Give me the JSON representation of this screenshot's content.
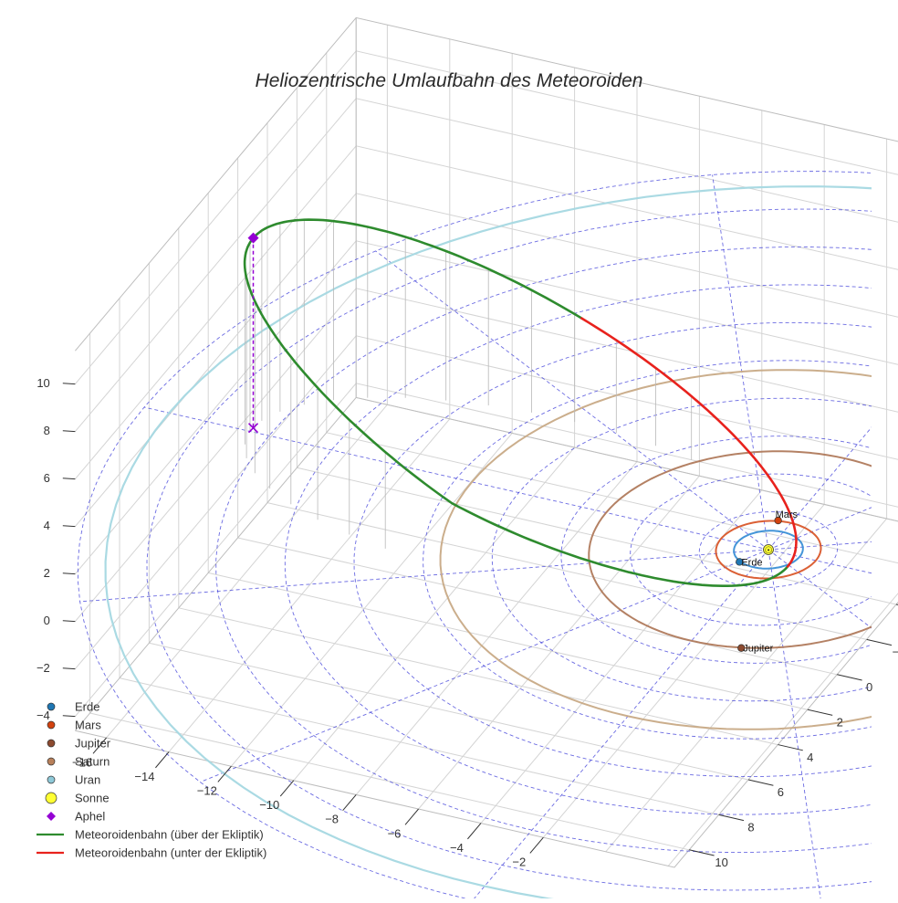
{
  "chart_data": {
    "type": "scatter3d",
    "title": "Heliozentrische Umlaufbahn des Meteoroiden",
    "axes": {
      "x": {
        "ticks": [
          -16,
          -14,
          -12,
          -10,
          -8,
          -6,
          -4,
          -2
        ],
        "labels": [
          "−16",
          "−14",
          "−12",
          "−10",
          "−8",
          "−6",
          "−4",
          "−2"
        ]
      },
      "y": {
        "ticks": [
          -4,
          -2,
          0,
          2,
          4,
          6,
          8,
          10
        ],
        "labels": [
          "−4",
          "−2",
          "0",
          "2",
          "4",
          "6",
          "8",
          "10"
        ]
      },
      "z": {
        "ticks": [
          -4,
          -2,
          0,
          2,
          4,
          6,
          8,
          10
        ],
        "labels": [
          "−4",
          "−2",
          "0",
          "2",
          "4",
          "6",
          "8",
          "10"
        ]
      }
    },
    "planets": [
      {
        "name": "Erde",
        "orbit_radius_au": 1.0,
        "color": "#1f77b4",
        "orbit_color": "#3a8fd6",
        "position": [
          -0.5,
          0.9,
          0
        ]
      },
      {
        "name": "Mars",
        "orbit_radius_au": 1.52,
        "color": "#d2420f",
        "orbit_color": "#d9572a",
        "position": [
          -0.4,
          -1.5,
          0
        ]
      },
      {
        "name": "Jupiter",
        "orbit_radius_au": 5.2,
        "color": "#8c4a2f",
        "orbit_color": "#b07a5c",
        "position": [
          1.5,
          5.0,
          0
        ]
      },
      {
        "name": "Saturn",
        "orbit_radius_au": 9.5,
        "color": "#b8805a",
        "orbit_color": "#c8aa86",
        "position": [
          1.0,
          -9.4,
          0
        ]
      },
      {
        "name": "Uran",
        "orbit_radius_au": 19.2,
        "color": "#8ec9d8",
        "orbit_color": "#a5d8e2",
        "position": null
      }
    ],
    "sun": {
      "name": "Sonne",
      "label": "☉",
      "color": "#ffff33",
      "position": [
        0,
        0,
        0
      ]
    },
    "aphel": {
      "name": "Aphel",
      "color": "#9400d3",
      "position": [
        -16.6,
        -0.2,
        8.0
      ],
      "projection_z": 0.0
    },
    "meteoroid_orbit": {
      "perihel": [
        0.9,
        0.6,
        0.0
      ],
      "aphel": [
        -16.6,
        -0.2,
        8.0
      ],
      "semi_major_au": 8.9,
      "eccentricity": 0.9,
      "above_color": "#2e8b2e",
      "below_color": "#e8221d"
    },
    "ecliptic_grid": {
      "rings_au": [
        2,
        4,
        6,
        8,
        10,
        12,
        14,
        16,
        18,
        20
      ],
      "spokes": 12,
      "color": "#3a3ad8"
    },
    "legend": [
      {
        "label": "Erde",
        "symbol": "circle",
        "color": "#1f77b4"
      },
      {
        "label": "Mars",
        "symbol": "circle",
        "color": "#d2420f"
      },
      {
        "label": "Jupiter",
        "symbol": "circle",
        "color": "#8c4a2f"
      },
      {
        "label": "Saturn",
        "symbol": "circle",
        "color": "#b8805a"
      },
      {
        "label": "Uran",
        "symbol": "circle",
        "color": "#8ec9d8"
      },
      {
        "label": "Sonne",
        "symbol": "circle-large",
        "color": "#ffff33"
      },
      {
        "label": "Aphel",
        "symbol": "diamond",
        "color": "#9400d3"
      },
      {
        "label": "Meteoroidenbahn (über der Ekliptik)",
        "symbol": "line",
        "color": "#2e8b2e"
      },
      {
        "label": "Meteoroidenbahn (unter der Ekliptik)",
        "symbol": "line",
        "color": "#e8221d"
      }
    ]
  }
}
